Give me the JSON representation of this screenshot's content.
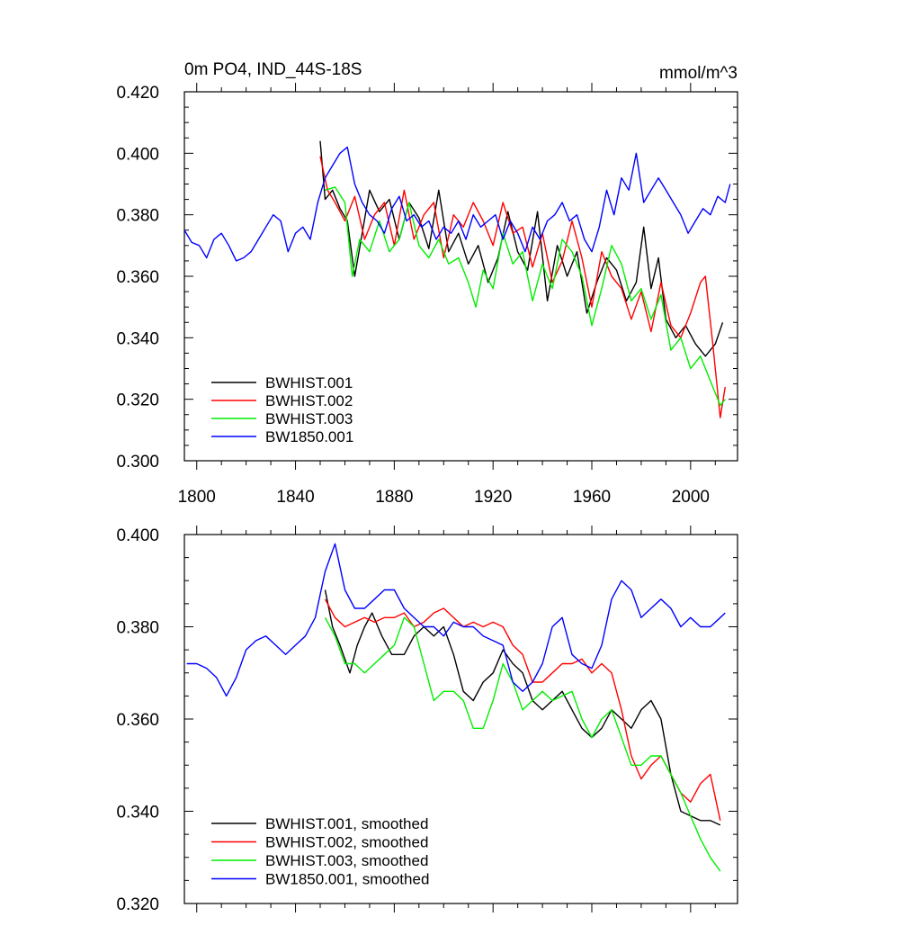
{
  "chart_data": [
    {
      "type": "line",
      "title": "0m PO4, IND_44S-18S",
      "units": "mmol/m^3",
      "xlim": [
        1795,
        2019
      ],
      "ylim": [
        0.3,
        0.42
      ],
      "xticks": [
        1800,
        1840,
        1880,
        1920,
        1960,
        2000
      ],
      "yticks": [
        0.3,
        0.32,
        0.34,
        0.36,
        0.38,
        0.4,
        0.42
      ],
      "ytick_labels": [
        "0.300",
        "0.320",
        "0.340",
        "0.360",
        "0.380",
        "0.400",
        "0.420"
      ],
      "xtick_labels": [
        "1800",
        "1840",
        "1880",
        "1920",
        "1960",
        "2000"
      ],
      "legend_position": "bottom-left",
      "series": [
        {
          "name": "BWHIST.001",
          "color": "#000000",
          "x": [
            1850,
            1852,
            1855,
            1858,
            1861,
            1864,
            1867,
            1870,
            1874,
            1878,
            1882,
            1886,
            1890,
            1894,
            1898,
            1902,
            1906,
            1910,
            1914,
            1918,
            1922,
            1926,
            1930,
            1934,
            1938,
            1942,
            1946,
            1950,
            1954,
            1958,
            1962,
            1966,
            1970,
            1974,
            1978,
            1981,
            1984,
            1987,
            1990,
            1994,
            1998,
            2002,
            2006,
            2010,
            2013
          ],
          "y": [
            0.404,
            0.385,
            0.388,
            0.382,
            0.378,
            0.36,
            0.374,
            0.388,
            0.381,
            0.385,
            0.372,
            0.384,
            0.379,
            0.369,
            0.388,
            0.368,
            0.374,
            0.364,
            0.37,
            0.358,
            0.366,
            0.381,
            0.368,
            0.362,
            0.381,
            0.352,
            0.37,
            0.36,
            0.368,
            0.348,
            0.358,
            0.366,
            0.362,
            0.352,
            0.358,
            0.376,
            0.356,
            0.366,
            0.346,
            0.34,
            0.344,
            0.338,
            0.334,
            0.338,
            0.345
          ]
        },
        {
          "name": "BWHIST.002",
          "color": "#ff0000",
          "x": [
            1850,
            1853,
            1856,
            1860,
            1864,
            1868,
            1872,
            1876,
            1880,
            1884,
            1888,
            1892,
            1896,
            1900,
            1904,
            1908,
            1912,
            1916,
            1920,
            1924,
            1928,
            1932,
            1936,
            1940,
            1944,
            1948,
            1952,
            1956,
            1960,
            1964,
            1968,
            1972,
            1976,
            1980,
            1984,
            1988,
            1992,
            1996,
            2000,
            2004,
            2006,
            2009,
            2012,
            2014
          ],
          "y": [
            0.399,
            0.388,
            0.384,
            0.378,
            0.386,
            0.372,
            0.38,
            0.384,
            0.37,
            0.388,
            0.372,
            0.38,
            0.384,
            0.366,
            0.38,
            0.376,
            0.384,
            0.378,
            0.37,
            0.384,
            0.374,
            0.376,
            0.363,
            0.374,
            0.358,
            0.365,
            0.378,
            0.366,
            0.35,
            0.368,
            0.36,
            0.356,
            0.346,
            0.355,
            0.342,
            0.358,
            0.344,
            0.34,
            0.348,
            0.358,
            0.36,
            0.338,
            0.314,
            0.324
          ]
        },
        {
          "name": "BWHIST.003",
          "color": "#00ee00",
          "x": [
            1852,
            1856,
            1860,
            1863,
            1866,
            1870,
            1874,
            1878,
            1882,
            1886,
            1890,
            1894,
            1898,
            1902,
            1906,
            1910,
            1913,
            1916,
            1920,
            1924,
            1928,
            1932,
            1936,
            1940,
            1944,
            1948,
            1952,
            1956,
            1960,
            1964,
            1968,
            1972,
            1976,
            1980,
            1984,
            1988,
            1992,
            1996,
            2000,
            2004,
            2008,
            2012,
            2014
          ],
          "y": [
            0.388,
            0.389,
            0.384,
            0.36,
            0.372,
            0.368,
            0.378,
            0.368,
            0.372,
            0.384,
            0.37,
            0.366,
            0.372,
            0.364,
            0.366,
            0.358,
            0.35,
            0.362,
            0.356,
            0.374,
            0.364,
            0.368,
            0.352,
            0.364,
            0.356,
            0.372,
            0.368,
            0.36,
            0.344,
            0.356,
            0.37,
            0.364,
            0.352,
            0.356,
            0.346,
            0.354,
            0.336,
            0.34,
            0.33,
            0.334,
            0.326,
            0.318,
            0.32
          ]
        },
        {
          "name": "BW1850.001",
          "color": "#0000ff",
          "x": [
            1795,
            1798,
            1801,
            1804,
            1807,
            1810,
            1813,
            1816,
            1819,
            1822,
            1825,
            1828,
            1831,
            1834,
            1837,
            1840,
            1843,
            1846,
            1849,
            1852,
            1855,
            1858,
            1861,
            1864,
            1867,
            1870,
            1873,
            1876,
            1879,
            1882,
            1885,
            1888,
            1891,
            1894,
            1897,
            1900,
            1903,
            1906,
            1909,
            1912,
            1915,
            1918,
            1921,
            1924,
            1927,
            1930,
            1933,
            1936,
            1939,
            1942,
            1945,
            1948,
            1951,
            1954,
            1957,
            1960,
            1963,
            1966,
            1969,
            1972,
            1975,
            1978,
            1981,
            1984,
            1987,
            1990,
            1993,
            1996,
            1999,
            2002,
            2005,
            2008,
            2011,
            2014,
            2016
          ],
          "y": [
            0.375,
            0.371,
            0.37,
            0.366,
            0.372,
            0.374,
            0.37,
            0.365,
            0.366,
            0.368,
            0.372,
            0.376,
            0.38,
            0.378,
            0.368,
            0.374,
            0.376,
            0.372,
            0.384,
            0.392,
            0.396,
            0.4,
            0.402,
            0.39,
            0.384,
            0.38,
            0.378,
            0.374,
            0.382,
            0.386,
            0.378,
            0.38,
            0.376,
            0.378,
            0.372,
            0.376,
            0.374,
            0.378,
            0.372,
            0.38,
            0.376,
            0.378,
            0.38,
            0.372,
            0.378,
            0.374,
            0.368,
            0.376,
            0.372,
            0.378,
            0.38,
            0.384,
            0.378,
            0.38,
            0.372,
            0.368,
            0.376,
            0.388,
            0.38,
            0.392,
            0.388,
            0.4,
            0.384,
            0.388,
            0.392,
            0.388,
            0.384,
            0.38,
            0.374,
            0.378,
            0.382,
            0.38,
            0.386,
            0.384,
            0.39
          ]
        }
      ]
    },
    {
      "type": "line",
      "xlim": [
        1795,
        2019
      ],
      "ylim": [
        0.32,
        0.4
      ],
      "yticks": [
        0.32,
        0.34,
        0.36,
        0.38,
        0.4
      ],
      "ytick_labels": [
        "0.320",
        "0.340",
        "0.360",
        "0.380",
        "0.400"
      ],
      "xticks": [
        1800,
        1840,
        1880,
        1920,
        1960,
        2000
      ],
      "legend_position": "bottom-left",
      "series": [
        {
          "name": "BWHIST.001, smoothed",
          "color": "#000000",
          "x": [
            1852,
            1855,
            1858,
            1862,
            1865,
            1868,
            1871,
            1875,
            1879,
            1884,
            1888,
            1892,
            1896,
            1900,
            1904,
            1908,
            1912,
            1916,
            1920,
            1924,
            1928,
            1932,
            1936,
            1940,
            1944,
            1948,
            1952,
            1956,
            1960,
            1964,
            1968,
            1972,
            1976,
            1980,
            1984,
            1988,
            1992,
            1996,
            2000,
            2004,
            2008,
            2012
          ],
          "y": [
            0.388,
            0.38,
            0.376,
            0.37,
            0.376,
            0.38,
            0.383,
            0.378,
            0.374,
            0.374,
            0.378,
            0.38,
            0.378,
            0.38,
            0.374,
            0.366,
            0.364,
            0.368,
            0.37,
            0.375,
            0.372,
            0.37,
            0.364,
            0.362,
            0.364,
            0.366,
            0.362,
            0.358,
            0.356,
            0.358,
            0.362,
            0.36,
            0.358,
            0.362,
            0.364,
            0.36,
            0.348,
            0.34,
            0.339,
            0.338,
            0.338,
            0.337
          ]
        },
        {
          "name": "BWHIST.002, smoothed",
          "color": "#ff0000",
          "x": [
            1852,
            1856,
            1860,
            1864,
            1868,
            1872,
            1876,
            1880,
            1884,
            1888,
            1892,
            1896,
            1900,
            1904,
            1908,
            1912,
            1916,
            1920,
            1924,
            1928,
            1932,
            1936,
            1940,
            1944,
            1948,
            1952,
            1956,
            1960,
            1964,
            1968,
            1972,
            1976,
            1980,
            1984,
            1988,
            1992,
            1996,
            2000,
            2004,
            2008,
            2012
          ],
          "y": [
            0.386,
            0.382,
            0.38,
            0.381,
            0.382,
            0.381,
            0.382,
            0.382,
            0.383,
            0.38,
            0.381,
            0.383,
            0.384,
            0.382,
            0.38,
            0.381,
            0.38,
            0.381,
            0.38,
            0.376,
            0.374,
            0.368,
            0.368,
            0.37,
            0.372,
            0.372,
            0.373,
            0.37,
            0.372,
            0.37,
            0.362,
            0.352,
            0.347,
            0.35,
            0.352,
            0.348,
            0.344,
            0.342,
            0.346,
            0.348,
            0.338
          ]
        },
        {
          "name": "BWHIST.003, smoothed",
          "color": "#00ee00",
          "x": [
            1852,
            1856,
            1860,
            1864,
            1868,
            1872,
            1876,
            1880,
            1884,
            1888,
            1892,
            1896,
            1900,
            1904,
            1908,
            1912,
            1916,
            1920,
            1924,
            1928,
            1932,
            1936,
            1940,
            1944,
            1948,
            1952,
            1956,
            1960,
            1964,
            1968,
            1972,
            1976,
            1980,
            1984,
            1988,
            1992,
            1996,
            2000,
            2004,
            2008,
            2012
          ],
          "y": [
            0.382,
            0.378,
            0.372,
            0.372,
            0.37,
            0.372,
            0.374,
            0.376,
            0.382,
            0.38,
            0.372,
            0.364,
            0.366,
            0.366,
            0.364,
            0.358,
            0.358,
            0.364,
            0.372,
            0.368,
            0.362,
            0.364,
            0.366,
            0.364,
            0.365,
            0.366,
            0.36,
            0.356,
            0.36,
            0.362,
            0.356,
            0.35,
            0.35,
            0.352,
            0.352,
            0.348,
            0.344,
            0.339,
            0.334,
            0.33,
            0.327
          ]
        },
        {
          "name": "BW1850.001, smoothed",
          "color": "#0000ff",
          "x": [
            1796,
            1800,
            1804,
            1808,
            1812,
            1816,
            1820,
            1824,
            1828,
            1832,
            1836,
            1840,
            1844,
            1848,
            1852,
            1856,
            1860,
            1864,
            1868,
            1872,
            1876,
            1880,
            1884,
            1888,
            1892,
            1896,
            1900,
            1904,
            1908,
            1912,
            1916,
            1920,
            1924,
            1928,
            1932,
            1936,
            1940,
            1944,
            1948,
            1952,
            1956,
            1960,
            1964,
            1968,
            1972,
            1976,
            1980,
            1984,
            1988,
            1992,
            1996,
            2000,
            2004,
            2008,
            2012,
            2014
          ],
          "y": [
            0.372,
            0.372,
            0.371,
            0.369,
            0.365,
            0.369,
            0.375,
            0.377,
            0.378,
            0.376,
            0.374,
            0.376,
            0.378,
            0.382,
            0.392,
            0.398,
            0.388,
            0.384,
            0.384,
            0.386,
            0.388,
            0.388,
            0.384,
            0.382,
            0.38,
            0.38,
            0.378,
            0.381,
            0.38,
            0.38,
            0.378,
            0.377,
            0.376,
            0.368,
            0.366,
            0.368,
            0.372,
            0.38,
            0.382,
            0.374,
            0.372,
            0.371,
            0.376,
            0.386,
            0.39,
            0.388,
            0.382,
            0.384,
            0.386,
            0.384,
            0.38,
            0.382,
            0.38,
            0.38,
            0.382,
            0.383
          ]
        }
      ]
    }
  ]
}
